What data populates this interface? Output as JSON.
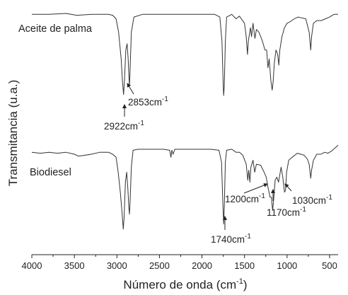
{
  "chart_data": {
    "type": "line",
    "xlabel": "Número de onda (cm",
    "xlabel_sup": "-1",
    "xlabel_end": ")",
    "ylabel": "Transmitancia (u.a.)",
    "xlim": [
      4000,
      400
    ],
    "x_reversed": true,
    "x_ticks": [
      4000,
      3500,
      3000,
      2500,
      2000,
      1500,
      1000,
      500
    ],
    "y_ticks_shown": false,
    "grid": false,
    "series": [
      {
        "name": "Aceite de palma",
        "points": [
          [
            4000,
            0.95
          ],
          [
            3800,
            0.95
          ],
          [
            3600,
            0.96
          ],
          [
            3470,
            0.94
          ],
          [
            3300,
            0.95
          ],
          [
            3100,
            0.95
          ],
          [
            3050,
            0.94
          ],
          [
            3010,
            0.9
          ],
          [
            2980,
            0.75
          ],
          [
            2950,
            0.45
          ],
          [
            2935,
            0.2
          ],
          [
            2922,
            0.05
          ],
          [
            2912,
            0.2
          ],
          [
            2895,
            0.55
          ],
          [
            2880,
            0.62
          ],
          [
            2868,
            0.45
          ],
          [
            2860,
            0.28
          ],
          [
            2853,
            0.15
          ],
          [
            2846,
            0.3
          ],
          [
            2830,
            0.75
          ],
          [
            2800,
            0.92
          ],
          [
            2700,
            0.95
          ],
          [
            2500,
            0.95
          ],
          [
            2350,
            0.95
          ],
          [
            2200,
            0.95
          ],
          [
            2000,
            0.95
          ],
          [
            1850,
            0.95
          ],
          [
            1790,
            0.92
          ],
          [
            1765,
            0.65
          ],
          [
            1750,
            0.15
          ],
          [
            1745,
            0.04
          ],
          [
            1738,
            0.15
          ],
          [
            1725,
            0.65
          ],
          [
            1710,
            0.92
          ],
          [
            1650,
            0.95
          ],
          [
            1600,
            0.9
          ],
          [
            1560,
            0.93
          ],
          [
            1500,
            0.85
          ],
          [
            1480,
            0.7
          ],
          [
            1465,
            0.5
          ],
          [
            1455,
            0.65
          ],
          [
            1430,
            0.8
          ],
          [
            1418,
            0.7
          ],
          [
            1400,
            0.85
          ],
          [
            1378,
            0.68
          ],
          [
            1360,
            0.78
          ],
          [
            1330,
            0.75
          ],
          [
            1290,
            0.65
          ],
          [
            1260,
            0.55
          ],
          [
            1240,
            0.55
          ],
          [
            1225,
            0.35
          ],
          [
            1210,
            0.45
          ],
          [
            1190,
            0.2
          ],
          [
            1175,
            0.1
          ],
          [
            1163,
            0.2
          ],
          [
            1150,
            0.4
          ],
          [
            1130,
            0.55
          ],
          [
            1110,
            0.5
          ],
          [
            1097,
            0.38
          ],
          [
            1085,
            0.55
          ],
          [
            1060,
            0.7
          ],
          [
            1030,
            0.8
          ],
          [
            1000,
            0.85
          ],
          [
            960,
            0.87
          ],
          [
            915,
            0.9
          ],
          [
            870,
            0.92
          ],
          [
            830,
            0.91
          ],
          [
            780,
            0.9
          ],
          [
            740,
            0.75
          ],
          [
            722,
            0.55
          ],
          [
            712,
            0.7
          ],
          [
            690,
            0.85
          ],
          [
            650,
            0.88
          ],
          [
            600,
            0.88
          ],
          [
            550,
            0.9
          ],
          [
            500,
            0.92
          ],
          [
            450,
            0.95
          ],
          [
            400,
            0.95
          ]
        ]
      },
      {
        "name": "Biodiesel",
        "points": [
          [
            4000,
            0.8
          ],
          [
            3900,
            0.79
          ],
          [
            3800,
            0.8
          ],
          [
            3700,
            0.79
          ],
          [
            3600,
            0.8
          ],
          [
            3500,
            0.78
          ],
          [
            3450,
            0.76
          ],
          [
            3300,
            0.78
          ],
          [
            3200,
            0.8
          ],
          [
            3100,
            0.8
          ],
          [
            3050,
            0.78
          ],
          [
            3010,
            0.75
          ],
          [
            2985,
            0.6
          ],
          [
            2960,
            0.4
          ],
          [
            2940,
            0.2
          ],
          [
            2925,
            0.03
          ],
          [
            2915,
            0.15
          ],
          [
            2900,
            0.5
          ],
          [
            2885,
            0.6
          ],
          [
            2870,
            0.42
          ],
          [
            2860,
            0.25
          ],
          [
            2853,
            0.18
          ],
          [
            2845,
            0.3
          ],
          [
            2830,
            0.65
          ],
          [
            2810,
            0.82
          ],
          [
            2750,
            0.83
          ],
          [
            2600,
            0.83
          ],
          [
            2450,
            0.83
          ],
          [
            2380,
            0.82
          ],
          [
            2365,
            0.75
          ],
          [
            2355,
            0.82
          ],
          [
            2340,
            0.78
          ],
          [
            2320,
            0.83
          ],
          [
            2100,
            0.83
          ],
          [
            1900,
            0.83
          ],
          [
            1800,
            0.82
          ],
          [
            1770,
            0.7
          ],
          [
            1755,
            0.3
          ],
          [
            1745,
            0.08
          ],
          [
            1738,
            0.25
          ],
          [
            1725,
            0.7
          ],
          [
            1710,
            0.82
          ],
          [
            1650,
            0.83
          ],
          [
            1600,
            0.8
          ],
          [
            1560,
            0.8
          ],
          [
            1520,
            0.77
          ],
          [
            1480,
            0.68
          ],
          [
            1462,
            0.52
          ],
          [
            1450,
            0.62
          ],
          [
            1437,
            0.5
          ],
          [
            1425,
            0.65
          ],
          [
            1400,
            0.72
          ],
          [
            1380,
            0.6
          ],
          [
            1360,
            0.68
          ],
          [
            1310,
            0.67
          ],
          [
            1270,
            0.6
          ],
          [
            1245,
            0.55
          ],
          [
            1225,
            0.45
          ],
          [
            1200,
            0.35
          ],
          [
            1185,
            0.35
          ],
          [
            1170,
            0.22
          ],
          [
            1160,
            0.3
          ],
          [
            1140,
            0.52
          ],
          [
            1120,
            0.55
          ],
          [
            1100,
            0.5
          ],
          [
            1070,
            0.65
          ],
          [
            1050,
            0.55
          ],
          [
            1030,
            0.4
          ],
          [
            1018,
            0.42
          ],
          [
            1005,
            0.6
          ],
          [
            980,
            0.72
          ],
          [
            940,
            0.75
          ],
          [
            880,
            0.79
          ],
          [
            840,
            0.78
          ],
          [
            800,
            0.77
          ],
          [
            760,
            0.73
          ],
          [
            740,
            0.68
          ],
          [
            722,
            0.54
          ],
          [
            712,
            0.62
          ],
          [
            690,
            0.72
          ],
          [
            650,
            0.78
          ],
          [
            600,
            0.78
          ],
          [
            560,
            0.8
          ],
          [
            520,
            0.79
          ],
          [
            480,
            0.81
          ],
          [
            440,
            0.84
          ],
          [
            400,
            0.87
          ]
        ]
      }
    ],
    "annotations": [
      {
        "text": "2853cm",
        "sup": "-1",
        "series": "Aceite de palma"
      },
      {
        "text": "2922cm",
        "sup": "-1",
        "series": "Aceite de palma"
      },
      {
        "text": "1200cm",
        "sup": "-1",
        "series": "Biodiesel"
      },
      {
        "text": "1030cm",
        "sup": "-1",
        "series": "Biodiesel"
      },
      {
        "text": "1170cm",
        "sup": "-1",
        "series": "Biodiesel"
      },
      {
        "text": "1740cm",
        "sup": "-1",
        "series": "Biodiesel"
      }
    ]
  }
}
